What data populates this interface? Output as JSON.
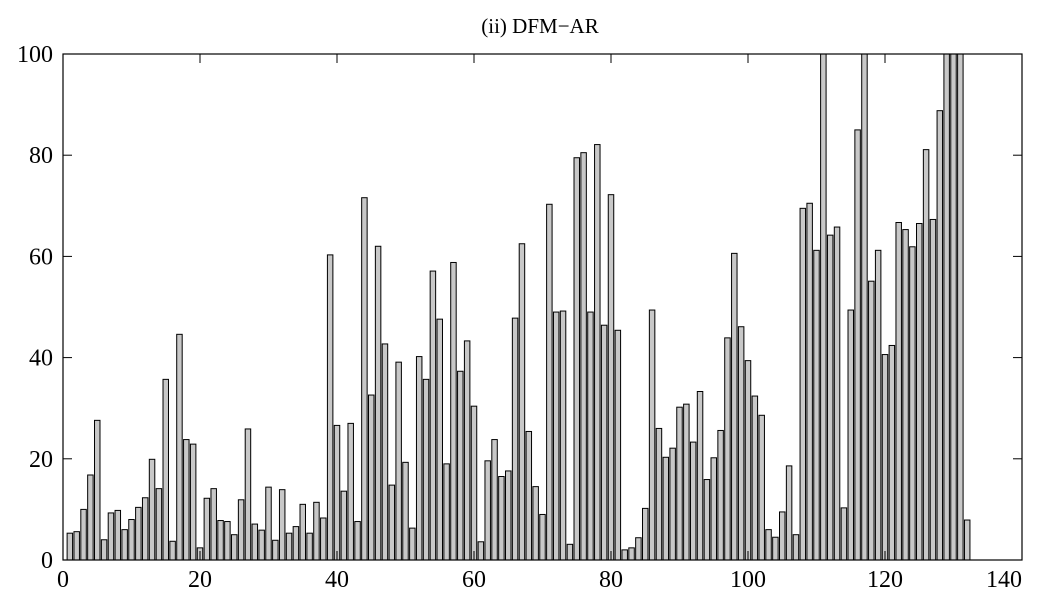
{
  "chart_data": {
    "type": "bar",
    "title": "(ii) DFM−AR",
    "xlabel": "",
    "ylabel": "",
    "xlim": [
      0,
      140
    ],
    "ylim": [
      0,
      100
    ],
    "xticks": [
      0,
      20,
      40,
      60,
      80,
      100,
      120,
      140
    ],
    "yticks": [
      0,
      20,
      40,
      60,
      80,
      100
    ],
    "xtick_labels": [
      "0",
      "20",
      "40",
      "60",
      "80",
      "100",
      "120",
      "140"
    ],
    "ytick_labels": [
      "0",
      "20",
      "40",
      "60",
      "80",
      "100"
    ],
    "grid": false,
    "bar_color": "#c8c8c8",
    "edge_color": "#000000",
    "x": [
      1,
      2,
      3,
      4,
      5,
      6,
      7,
      8,
      9,
      10,
      11,
      12,
      13,
      14,
      15,
      16,
      17,
      18,
      19,
      20,
      21,
      22,
      23,
      24,
      25,
      26,
      27,
      28,
      29,
      30,
      31,
      32,
      33,
      34,
      35,
      36,
      37,
      38,
      39,
      40,
      41,
      42,
      43,
      44,
      45,
      46,
      47,
      48,
      49,
      50,
      51,
      52,
      53,
      54,
      55,
      56,
      57,
      58,
      59,
      60,
      61,
      62,
      63,
      64,
      65,
      66,
      67,
      68,
      69,
      70,
      71,
      72,
      73,
      74,
      75,
      76,
      77,
      78,
      79,
      80,
      81,
      82,
      83,
      84,
      85,
      86,
      87,
      88,
      89,
      90,
      91,
      92,
      93,
      94,
      95,
      96,
      97,
      98,
      99,
      100,
      101,
      102,
      103,
      104,
      105,
      106,
      107,
      108,
      109,
      110,
      111,
      112,
      113,
      114,
      115,
      116,
      117,
      118,
      119,
      120,
      121,
      122,
      123,
      124,
      125,
      126,
      127,
      128,
      129,
      130,
      131,
      132
    ],
    "values": [
      5.3,
      5.6,
      10.0,
      16.8,
      27.6,
      4.0,
      9.3,
      9.8,
      6.0,
      8.0,
      10.4,
      12.3,
      19.9,
      14.1,
      35.7,
      3.7,
      44.6,
      23.8,
      22.9,
      2.4,
      12.2,
      14.1,
      7.8,
      7.6,
      5.0,
      11.9,
      25.9,
      7.1,
      5.9,
      14.4,
      3.9,
      13.9,
      5.3,
      6.6,
      11.0,
      5.3,
      11.4,
      8.3,
      60.3,
      26.6,
      13.6,
      27.0,
      7.6,
      71.6,
      32.6,
      62.0,
      42.7,
      14.8,
      39.1,
      19.3,
      6.3,
      40.2,
      35.7,
      57.1,
      47.6,
      19.0,
      58.8,
      37.3,
      43.3,
      30.4,
      3.6,
      19.6,
      23.8,
      16.5,
      17.6,
      47.8,
      62.5,
      25.4,
      14.5,
      9.0,
      70.3,
      49.0,
      49.2,
      3.1,
      79.5,
      80.5,
      49.0,
      82.1,
      46.4,
      72.2,
      45.4,
      2.0,
      2.4,
      4.4,
      10.2,
      49.4,
      26.0,
      20.3,
      22.1,
      30.2,
      30.8,
      23.3,
      33.3,
      15.9,
      20.2,
      25.6,
      43.9,
      60.6,
      46.1,
      39.4,
      32.4,
      28.6,
      6.0,
      4.5,
      9.5,
      18.6,
      5.0,
      69.5,
      70.5,
      61.2,
      100,
      64.2,
      65.8,
      10.3,
      49.4,
      85.0,
      100,
      55.1,
      61.2,
      40.6,
      42.4,
      66.7,
      65.3,
      61.9,
      66.5,
      81.1,
      67.3,
      88.8,
      100,
      100,
      100,
      7.9
    ]
  }
}
